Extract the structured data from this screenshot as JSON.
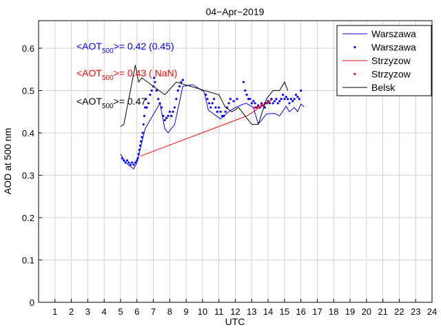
{
  "chart_data": {
    "type": "line",
    "title": "04−Apr−2019",
    "xlabel": "UTC",
    "ylabel": "AOD at 500 nm",
    "xlim": [
      0,
      24
    ],
    "ylim": [
      0,
      0.665
    ],
    "grid": true,
    "xticks": [
      "1",
      "2",
      "3",
      "4",
      "5",
      "6",
      "7",
      "8",
      "9",
      "10",
      "11",
      "12",
      "13",
      "14",
      "15",
      "16",
      "17",
      "18",
      "19",
      "20",
      "21",
      "22",
      "23",
      "24"
    ],
    "yticks": [
      "0",
      "0.1",
      "0.2",
      "0.3",
      "0.4",
      "0.5",
      "0.6"
    ],
    "legend_position": "top-right",
    "series": [
      {
        "name": "Warszawa",
        "style": "line",
        "color": "#0000ff",
        "x": [
          5.0,
          5.3,
          5.8,
          6.0,
          6.5,
          7.4,
          7.7,
          7.9,
          8.3,
          8.8,
          9.4,
          10.1,
          10.35,
          11.1,
          11.6,
          12.0,
          12.3,
          12.65,
          12.9,
          13.1,
          13.4,
          13.6,
          13.9,
          14.4,
          14.7,
          15.1,
          15.3,
          15.6,
          15.8,
          16.0,
          16.2
        ],
        "y": [
          0.35,
          0.33,
          0.315,
          0.33,
          0.41,
          0.47,
          0.41,
          0.4,
          0.42,
          0.51,
          0.514,
          0.497,
          0.454,
          0.433,
          0.45,
          0.46,
          0.465,
          0.47,
          0.465,
          0.46,
          0.421,
          0.43,
          0.445,
          0.446,
          0.44,
          0.463,
          0.45,
          0.46,
          0.45,
          0.468,
          0.462
        ]
      },
      {
        "name": "Warszawa",
        "style": "dots",
        "color": "#0000ff",
        "x": [
          5.1,
          5.2,
          5.3,
          5.4,
          5.5,
          5.6,
          5.7,
          5.8,
          5.9,
          6.0,
          6.05,
          6.1,
          6.15,
          6.2,
          6.25,
          6.3,
          6.35,
          6.4,
          6.45,
          6.5,
          6.55,
          6.6,
          6.7,
          6.8,
          6.9,
          7.0,
          7.05,
          7.1,
          7.2,
          7.3,
          7.4,
          7.5,
          7.6,
          7.7,
          7.8,
          7.9,
          8.0,
          8.1,
          8.2,
          8.3,
          8.4,
          8.5,
          8.6,
          8.7,
          8.8,
          10.2,
          10.3,
          10.4,
          10.5,
          10.6,
          10.7,
          10.8,
          10.9,
          11.0,
          11.1,
          11.2,
          11.3,
          11.4,
          11.5,
          11.6,
          11.7,
          11.9,
          12.1,
          12.5,
          12.6,
          12.7,
          12.8,
          12.9,
          13.0,
          13.1,
          13.2,
          13.3,
          13.4,
          13.5,
          13.6,
          13.7,
          13.8,
          13.9,
          14.0,
          14.1,
          14.2,
          14.3,
          14.4,
          14.5,
          14.6,
          14.7,
          14.8,
          14.9,
          15.0,
          15.1,
          15.2,
          15.3,
          15.4,
          15.5,
          15.6,
          15.7,
          15.8,
          15.9,
          16.0
        ],
        "y": [
          0.34,
          0.335,
          0.33,
          0.335,
          0.33,
          0.325,
          0.33,
          0.325,
          0.33,
          0.335,
          0.34,
          0.35,
          0.36,
          0.37,
          0.38,
          0.39,
          0.4,
          0.42,
          0.44,
          0.46,
          0.48,
          0.46,
          0.47,
          0.49,
          0.5,
          0.51,
          0.53,
          0.52,
          0.5,
          0.48,
          0.47,
          0.46,
          0.44,
          0.43,
          0.435,
          0.44,
          0.45,
          0.44,
          0.45,
          0.46,
          0.48,
          0.5,
          0.51,
          0.52,
          0.525,
          0.49,
          0.48,
          0.47,
          0.46,
          0.47,
          0.48,
          0.46,
          0.45,
          0.46,
          0.45,
          0.44,
          0.44,
          0.45,
          0.46,
          0.47,
          0.48,
          0.475,
          0.48,
          0.52,
          0.5,
          0.49,
          0.48,
          0.48,
          0.47,
          0.475,
          0.47,
          0.46,
          0.465,
          0.46,
          0.47,
          0.465,
          0.46,
          0.47,
          0.475,
          0.47,
          0.48,
          0.47,
          0.475,
          0.48,
          0.47,
          0.475,
          0.48,
          0.49,
          0.48,
          0.485,
          0.48,
          0.47,
          0.48,
          0.475,
          0.48,
          0.49,
          0.485,
          0.48,
          0.5
        ]
      },
      {
        "name": "Strzyzow",
        "style": "line",
        "color": "#ff0000",
        "x": [
          6.2,
          12.7,
          14.3
        ],
        "y": [
          0.345,
          0.44,
          0.48
        ]
      },
      {
        "name": "Strzyzow",
        "style": "dots",
        "color": "#ff0000",
        "x": [
          13.2,
          13.4,
          13.6,
          13.8,
          14.0
        ],
        "y": [
          0.46,
          0.462,
          0.465,
          0.47,
          0.472
        ]
      },
      {
        "name": "Belsk",
        "style": "line",
        "color": "#000000",
        "x": [
          5.0,
          5.2,
          5.9,
          6.1,
          6.3,
          7.7,
          8.4,
          11.0,
          11.4,
          11.8,
          12.2,
          12.6,
          13.0,
          13.4,
          13.9,
          14.3,
          14.7,
          15.0,
          15.1,
          15.2
        ],
        "y": [
          0.415,
          0.42,
          0.56,
          0.52,
          0.53,
          0.49,
          0.52,
          0.49,
          0.46,
          0.45,
          0.46,
          0.44,
          0.42,
          0.42,
          0.48,
          0.5,
          0.5,
          0.52,
          0.51,
          0.5
        ]
      }
    ],
    "annotations": [
      {
        "prefix": "<AOT",
        "sub": "500",
        "suffix": ">= 0.42 (0.45)",
        "color": "#0000ff"
      },
      {
        "prefix": "<AOT",
        "sub": "500",
        "suffix": ">= 0.43 ( NaN)",
        "color": "#ff0000"
      },
      {
        "prefix": "<AOT",
        "sub": "500",
        "suffix": ">= 0.47",
        "color": "#000000"
      }
    ]
  }
}
